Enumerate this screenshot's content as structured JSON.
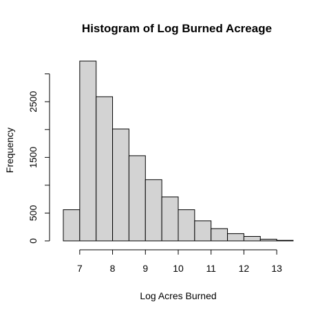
{
  "chart_data": {
    "type": "bar",
    "title": "Histogram of Log Burned Acreage",
    "xlabel": "Log Acres Burned",
    "ylabel": "Frequency",
    "bin_edges": [
      6.5,
      7.0,
      7.5,
      8.0,
      8.5,
      9.0,
      9.5,
      10.0,
      10.5,
      11.0,
      11.5,
      12.0,
      12.5,
      13.0,
      13.5
    ],
    "values": [
      560,
      3230,
      2590,
      2010,
      1530,
      1100,
      790,
      560,
      360,
      220,
      130,
      80,
      30,
      10
    ],
    "xlim": [
      6.5,
      13.5
    ],
    "ylim": [
      0,
      3230
    ],
    "x_ticks": [
      7,
      8,
      9,
      10,
      11,
      12,
      13
    ],
    "y_ticks": [
      0,
      500,
      1000,
      1500,
      2000,
      2500,
      3000
    ],
    "y_tick_labels": [
      "0",
      "500",
      "",
      "1500",
      "",
      "2500",
      ""
    ],
    "bar_color": "#d3d3d3",
    "grid": false,
    "legend": "none"
  }
}
